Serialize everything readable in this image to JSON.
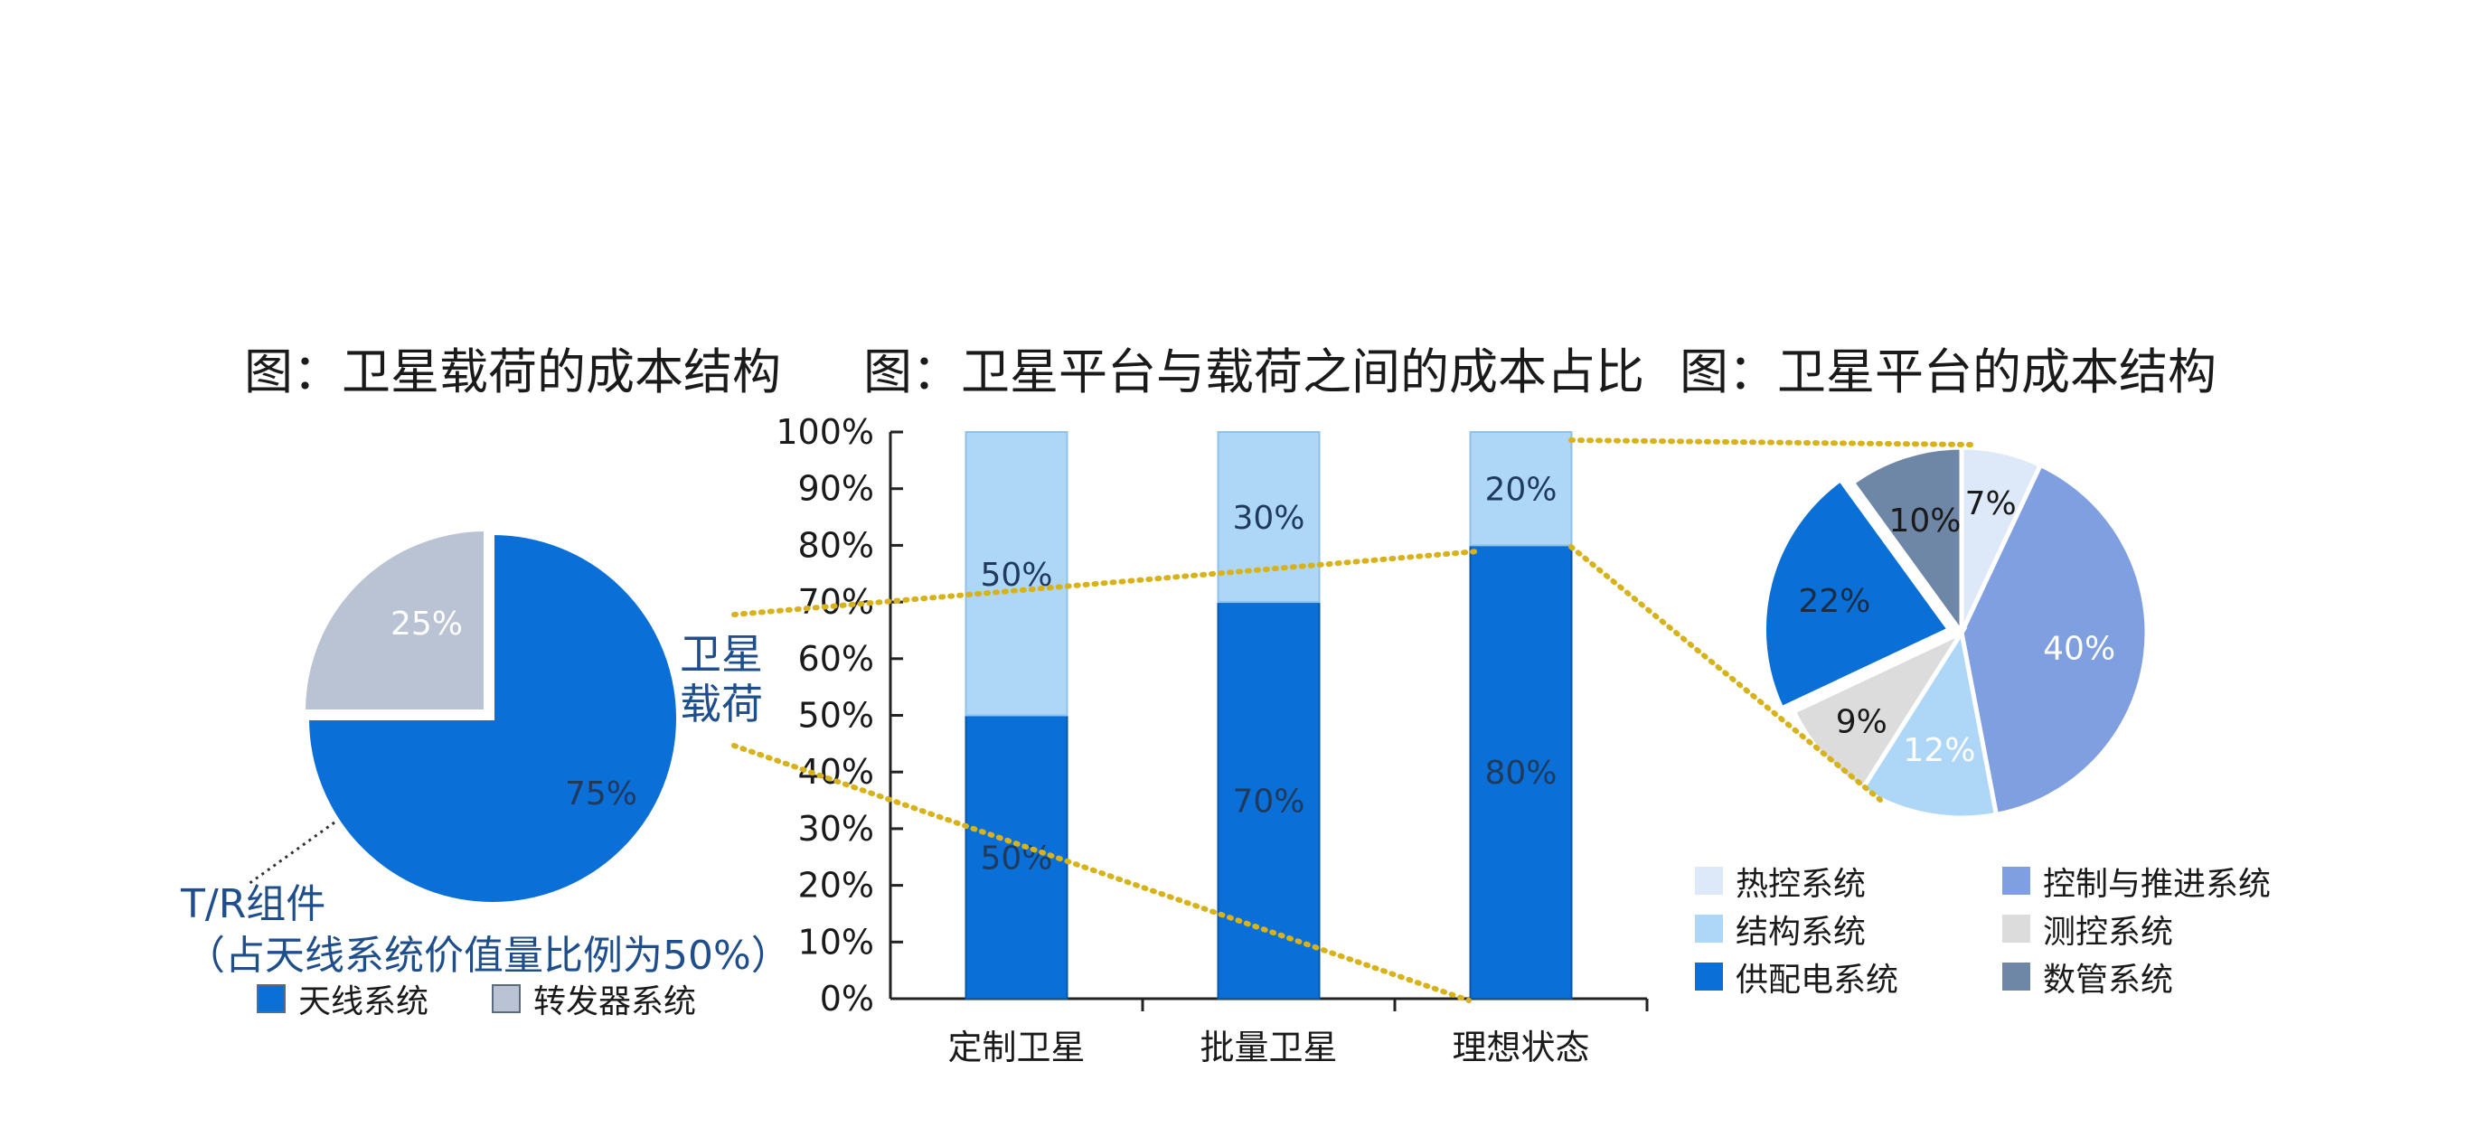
{
  "titles": {
    "left": "图：卫星载荷的成本结构",
    "middle": "图：卫星平台与载荷之间的成本占比",
    "right": "图：卫星平台的成本结构"
  },
  "annotations": {
    "payload_line1": "卫星",
    "payload_line2": "载荷",
    "tr_line1": "T/R组件",
    "tr_line2": "（占天线系统价值量比例为50%）"
  },
  "colors": {
    "dark_blue": "#0a6fd6",
    "light_blue": "#aed7f7",
    "gray_blue": "#b9c3d4",
    "dots": "#d8b21a"
  },
  "chart_data": [
    {
      "type": "pie",
      "title": "图：卫星载荷的成本结构",
      "slices": [
        {
          "label": "天线系统",
          "value": 75,
          "text": "75%",
          "color": "#0a6fd6"
        },
        {
          "label": "转发器系统",
          "value": 25,
          "text": "25%",
          "color": "#b9c3d4"
        }
      ],
      "legend": [
        "天线系统",
        "转发器系统"
      ],
      "legend_position": "bottom"
    },
    {
      "type": "bar",
      "stacked": true,
      "title": "图：卫星平台与载荷之间的成本占比",
      "categories": [
        "定制卫星",
        "批量卫星",
        "理想状态"
      ],
      "series": [
        {
          "values": [
            50,
            70,
            80
          ],
          "labels": [
            "50%",
            "70%",
            "80%"
          ],
          "color": "#0a6fd6"
        },
        {
          "values": [
            50,
            30,
            20
          ],
          "labels": [
            "50%",
            "30%",
            "20%"
          ],
          "color": "#aed7f7"
        }
      ],
      "yticks": [
        "0%",
        "10%",
        "20%",
        "30%",
        "40%",
        "50%",
        "60%",
        "70%",
        "80%",
        "90%",
        "100%"
      ],
      "ylim": [
        0,
        100
      ]
    },
    {
      "type": "pie",
      "title": "图：卫星平台的成本结构",
      "slices": [
        {
          "label": "热控系统",
          "value": 7,
          "text": "7%",
          "color": "#dde8f8"
        },
        {
          "label": "控制与推进系统",
          "value": 40,
          "text": "40%",
          "color": "#7f9fe0"
        },
        {
          "label": "结构系统",
          "value": 12,
          "text": "12%",
          "color": "#aed7f7"
        },
        {
          "label": "测控系统",
          "value": 9,
          "text": "9%",
          "color": "#dcdcdc"
        },
        {
          "label": "供配电系统",
          "value": 22,
          "text": "22%",
          "color": "#0a6fd6"
        },
        {
          "label": "数管系统",
          "value": 10,
          "text": "10%",
          "color": "#6f87a6"
        }
      ],
      "legend": [
        "热控系统",
        "控制与推进系统",
        "结构系统",
        "测控系统",
        "供配电系统",
        "数管系统"
      ],
      "legend_position": "bottom"
    }
  ]
}
